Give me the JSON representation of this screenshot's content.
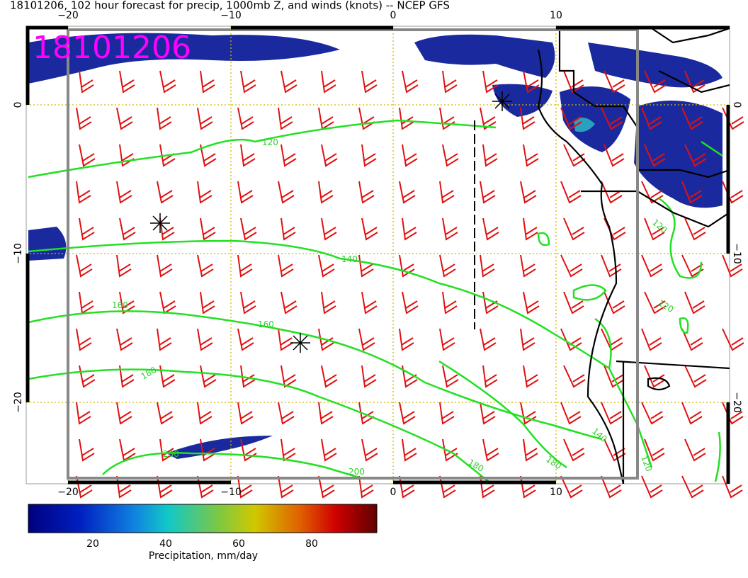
{
  "header": {
    "title": "18101206, 102 hour forecast for precip, 1000mb Z, and winds (knots) -- NCEP GFS",
    "stamp": "18101206"
  },
  "axes": {
    "top": [
      "−20",
      "−10",
      "0",
      "10"
    ],
    "bottom": [
      "−20",
      "−10",
      "0",
      "10"
    ],
    "left": [
      "0",
      "−10",
      "−20"
    ],
    "right": [
      "0",
      "−10",
      "−20"
    ]
  },
  "contour_labels": [
    "120",
    "140",
    "160",
    "160",
    "180",
    "200",
    "200",
    "180",
    "180",
    "140",
    "120",
    "120",
    "120"
  ],
  "colorbar": {
    "ticks": [
      "20",
      "40",
      "60",
      "80"
    ],
    "label": "Precipitation, mm/day"
  }
}
